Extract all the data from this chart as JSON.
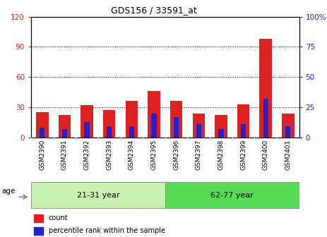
{
  "title": "GDS156 / 33591_at",
  "samples": [
    "GSM2390",
    "GSM2391",
    "GSM2392",
    "GSM2393",
    "GSM2394",
    "GSM2395",
    "GSM2396",
    "GSM2397",
    "GSM2398",
    "GSM2399",
    "GSM2400",
    "GSM2401"
  ],
  "count_values": [
    25,
    22,
    32,
    27,
    36,
    46,
    36,
    24,
    22,
    33,
    98,
    24
  ],
  "percentile_values": [
    8,
    7,
    13,
    9,
    9,
    20,
    17,
    11,
    7,
    11,
    32,
    9
  ],
  "groups": [
    {
      "label": "21-31 year",
      "start": 0,
      "end": 6
    },
    {
      "label": "62-77 year",
      "start": 6,
      "end": 12
    }
  ],
  "group_color_light": "#c8f0b0",
  "group_color_dark": "#55dd55",
  "bar_color_red": "#dd2222",
  "bar_color_blue": "#2222cc",
  "left_ylim": [
    0,
    120
  ],
  "right_ylim": [
    0,
    100
  ],
  "left_yticks": [
    0,
    30,
    60,
    90,
    120
  ],
  "right_yticks": [
    0,
    25,
    50,
    75,
    100
  ],
  "left_tick_labels": [
    "0",
    "30",
    "60",
    "90",
    "120"
  ],
  "right_tick_labels": [
    "0",
    "25",
    "50",
    "75",
    "100%"
  ],
  "age_label": "age",
  "legend_count": "count",
  "legend_percentile": "percentile rank within the sample",
  "bg_color": "#ffffff",
  "tick_area_color": "#cccccc",
  "title_fontsize": 9,
  "axis_fontsize": 7.5,
  "label_fontsize": 6.5,
  "legend_fontsize": 7
}
